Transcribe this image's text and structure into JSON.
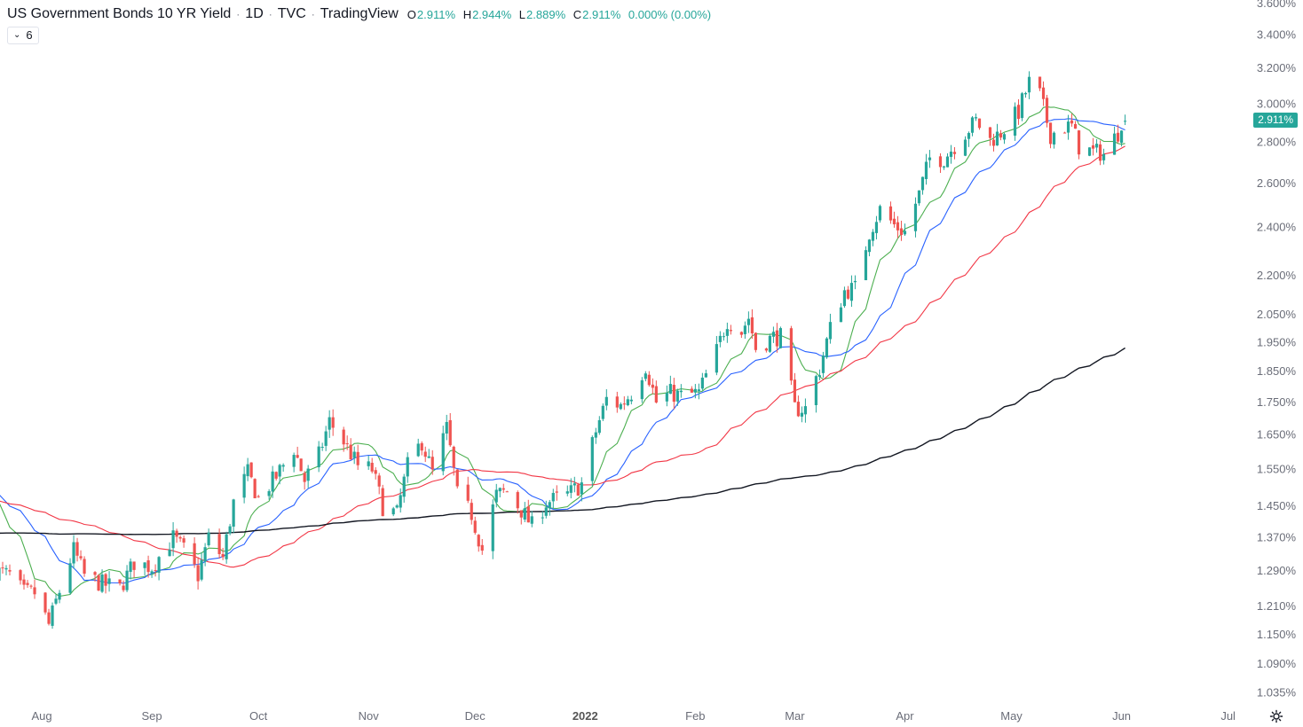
{
  "header": {
    "symbol": "US Government Bonds 10 YR Yield",
    "interval": "1D",
    "exchange": "TVC",
    "source": "TradingView",
    "open_key": "O",
    "open": "2.911%",
    "high_key": "H",
    "high": "2.944%",
    "low_key": "L",
    "low": "2.889%",
    "close_key": "C",
    "close": "2.911%",
    "change": "0.000% (0.00%)"
  },
  "indicators_toggle": {
    "chevron": "⌄",
    "count": "6"
  },
  "last_price_badge": "2.911%",
  "colors": {
    "up": "#26a69a",
    "down": "#ef5350",
    "ma_green": "#4caf50",
    "ma_blue": "#2962ff",
    "ma_red": "#f23645",
    "ma_black": "#131722",
    "axis_text": "#6a6d78"
  },
  "icons": {
    "settings": "gear-icon"
  },
  "chart_data": {
    "type": "candlestick",
    "y_scale": "log",
    "ylim": [
      1.0,
      3.65
    ],
    "y_ticks": [
      "3.600%",
      "3.400%",
      "3.200%",
      "3.000%",
      "2.800%",
      "2.600%",
      "2.400%",
      "2.200%",
      "2.050%",
      "1.950%",
      "1.850%",
      "1.750%",
      "1.650%",
      "1.550%",
      "1.450%",
      "1.370%",
      "1.290%",
      "1.210%",
      "1.150%",
      "1.090%",
      "1.035%"
    ],
    "x_ticks": [
      {
        "label": "Aug",
        "date": "2021-08-01",
        "bold": false
      },
      {
        "label": "Sep",
        "date": "2021-09-01",
        "bold": false
      },
      {
        "label": "Oct",
        "date": "2021-10-01",
        "bold": false
      },
      {
        "label": "Nov",
        "date": "2021-11-01",
        "bold": false
      },
      {
        "label": "Dec",
        "date": "2021-12-01",
        "bold": false
      },
      {
        "label": "2022",
        "date": "2022-01-01",
        "bold": true
      },
      {
        "label": "Feb",
        "date": "2022-02-01",
        "bold": false
      },
      {
        "label": "Mar",
        "date": "2022-03-01",
        "bold": false
      },
      {
        "label": "Apr",
        "date": "2022-04-01",
        "bold": false
      },
      {
        "label": "May",
        "date": "2022-05-01",
        "bold": false
      },
      {
        "label": "Jun",
        "date": "2022-06-01",
        "bold": false
      },
      {
        "label": "Jul",
        "date": "2022-07-01",
        "bold": false
      }
    ],
    "close_anchors": [
      [
        "2021-07-19",
        1.29
      ],
      [
        "2021-07-23",
        1.28
      ],
      [
        "2021-07-27",
        1.24
      ],
      [
        "2021-07-30",
        1.24
      ],
      [
        "2021-08-03",
        1.17
      ],
      [
        "2021-08-05",
        1.22
      ],
      [
        "2021-08-10",
        1.34
      ],
      [
        "2021-08-13",
        1.28
      ],
      [
        "2021-08-18",
        1.26
      ],
      [
        "2021-08-23",
        1.25
      ],
      [
        "2021-08-27",
        1.31
      ],
      [
        "2021-09-01",
        1.3
      ],
      [
        "2021-09-07",
        1.37
      ],
      [
        "2021-09-10",
        1.34
      ],
      [
        "2021-09-14",
        1.28
      ],
      [
        "2021-09-17",
        1.37
      ],
      [
        "2021-09-21",
        1.32
      ],
      [
        "2021-09-24",
        1.46
      ],
      [
        "2021-09-28",
        1.54
      ],
      [
        "2021-10-01",
        1.47
      ],
      [
        "2021-10-06",
        1.53
      ],
      [
        "2021-10-11",
        1.61
      ],
      [
        "2021-10-14",
        1.52
      ],
      [
        "2021-10-18",
        1.59
      ],
      [
        "2021-10-21",
        1.69
      ],
      [
        "2021-10-25",
        1.63
      ],
      [
        "2021-10-29",
        1.56
      ],
      [
        "2021-11-02",
        1.55
      ],
      [
        "2021-11-05",
        1.45
      ],
      [
        "2021-11-09",
        1.43
      ],
      [
        "2021-11-12",
        1.56
      ],
      [
        "2021-11-16",
        1.63
      ],
      [
        "2021-11-19",
        1.54
      ],
      [
        "2021-11-23",
        1.67
      ],
      [
        "2021-11-26",
        1.48
      ],
      [
        "2021-11-30",
        1.43
      ],
      [
        "2021-12-03",
        1.34
      ],
      [
        "2021-12-07",
        1.48
      ],
      [
        "2021-12-10",
        1.49
      ],
      [
        "2021-12-14",
        1.44
      ],
      [
        "2021-12-17",
        1.4
      ],
      [
        "2021-12-21",
        1.46
      ],
      [
        "2021-12-27",
        1.48
      ],
      [
        "2021-12-31",
        1.51
      ],
      [
        "2022-01-04",
        1.66
      ],
      [
        "2022-01-07",
        1.76
      ],
      [
        "2022-01-11",
        1.74
      ],
      [
        "2022-01-14",
        1.78
      ],
      [
        "2022-01-18",
        1.87
      ],
      [
        "2022-01-21",
        1.75
      ],
      [
        "2022-01-25",
        1.78
      ],
      [
        "2022-01-28",
        1.77
      ],
      [
        "2022-02-02",
        1.78
      ],
      [
        "2022-02-07",
        1.92
      ],
      [
        "2022-02-10",
        2.03
      ],
      [
        "2022-02-14",
        1.99
      ],
      [
        "2022-02-16",
        2.04
      ],
      [
        "2022-02-18",
        1.93
      ],
      [
        "2022-02-23",
        1.97
      ],
      [
        "2022-02-25",
        1.97
      ],
      [
        "2022-03-01",
        1.73
      ],
      [
        "2022-03-04",
        1.73
      ],
      [
        "2022-03-08",
        1.86
      ],
      [
        "2022-03-11",
        2.0
      ],
      [
        "2022-03-15",
        2.14
      ],
      [
        "2022-03-18",
        2.15
      ],
      [
        "2022-03-22",
        2.38
      ],
      [
        "2022-03-25",
        2.48
      ],
      [
        "2022-03-29",
        2.41
      ],
      [
        "2022-04-01",
        2.38
      ],
      [
        "2022-04-05",
        2.55
      ],
      [
        "2022-04-08",
        2.72
      ],
      [
        "2022-04-12",
        2.72
      ],
      [
        "2022-04-18",
        2.85
      ],
      [
        "2022-04-21",
        2.91
      ],
      [
        "2022-04-25",
        2.81
      ],
      [
        "2022-04-28",
        2.85
      ],
      [
        "2022-05-03",
        2.96
      ],
      [
        "2022-05-06",
        3.12
      ],
      [
        "2022-05-09",
        3.05
      ],
      [
        "2022-05-12",
        2.84
      ],
      [
        "2022-05-16",
        2.88
      ],
      [
        "2022-05-18",
        2.88
      ],
      [
        "2022-05-20",
        2.78
      ],
      [
        "2022-05-24",
        2.75
      ],
      [
        "2022-05-26",
        2.75
      ],
      [
        "2022-05-27",
        2.74
      ],
      [
        "2022-05-31",
        2.85
      ],
      [
        "2022-06-01",
        2.91
      ],
      [
        "2022-06-02",
        2.911
      ]
    ],
    "last": {
      "open": 2.911,
      "high": 2.944,
      "low": 2.889,
      "close": 2.911
    },
    "series": [
      {
        "type": "candles"
      },
      {
        "type": "ma",
        "period": 10,
        "color": "#4caf50"
      },
      {
        "type": "ma",
        "period": 20,
        "color": "#2962ff"
      },
      {
        "type": "ma",
        "period": 50,
        "color": "#f23645"
      },
      {
        "type": "ma",
        "period": 200,
        "color": "#131722"
      }
    ]
  }
}
